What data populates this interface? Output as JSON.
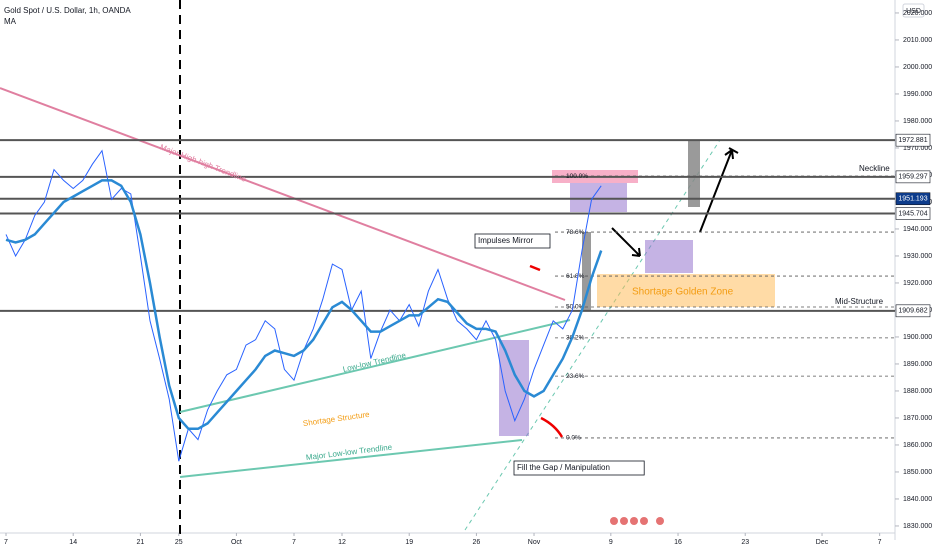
{
  "chart_data": {
    "type": "line",
    "title": "Gold Spot / U.S. Dollar, 1h, OANDA",
    "currency": "USD",
    "x": [
      0,
      1,
      2,
      3,
      4,
      5,
      6,
      7,
      8,
      9,
      10,
      11,
      12,
      13,
      14,
      15,
      16,
      17,
      18,
      19,
      20,
      21,
      22,
      23,
      24,
      25,
      26,
      27,
      28,
      29,
      30,
      31,
      32,
      33,
      34,
      35,
      36,
      37,
      38,
      39,
      40,
      41,
      42,
      43,
      44,
      45,
      46,
      47,
      48,
      49,
      50,
      51,
      52,
      53,
      54,
      55,
      56,
      57,
      58,
      59,
      60,
      61,
      62
    ],
    "price": {
      "color": "#2962ff",
      "values": [
        1938,
        1930,
        1936,
        1945,
        1950,
        1962,
        1958,
        1955,
        1958,
        1964,
        1969,
        1951,
        1955,
        1953,
        1930,
        1906,
        1892,
        1877,
        1854,
        1866,
        1862,
        1873,
        1880,
        1886,
        1888,
        1897,
        1899,
        1906,
        1903,
        1888,
        1884,
        1895,
        1903,
        1914,
        1927,
        1925,
        1910,
        1917,
        1892,
        1902,
        1910,
        1906,
        1912,
        1904,
        1917,
        1925,
        1914,
        1906,
        1903,
        1899,
        1906,
        1899,
        1880,
        1869,
        1877,
        1888,
        1897,
        1906,
        1903,
        1910,
        1932,
        1951,
        1956
      ]
    },
    "series": [
      {
        "name": "MA",
        "color": "#2a8ad4",
        "values": [
          1936,
          1935,
          1936,
          1938,
          1942,
          1946,
          1950,
          1952,
          1954,
          1956,
          1958,
          1958,
          1956,
          1950,
          1938,
          1920,
          1900,
          1882,
          1870,
          1866,
          1866,
          1868,
          1872,
          1876,
          1880,
          1884,
          1888,
          1893,
          1895,
          1894,
          1893,
          1895,
          1899,
          1905,
          1911,
          1913,
          1910,
          1906,
          1902,
          1902,
          1904,
          1906,
          1908,
          1908,
          1911,
          1914,
          1913,
          1909,
          1905,
          1903,
          1903,
          1902,
          1895,
          1886,
          1880,
          1878,
          1880,
          1886,
          1892,
          1900,
          1910,
          1922,
          1932
        ]
      }
    ],
    "xlim": [
      -0.625,
      92.6
    ],
    "xticks": [
      {
        "value": 0,
        "label": "7"
      },
      {
        "value": 7,
        "label": "14"
      },
      {
        "value": 14,
        "label": "21"
      },
      {
        "value": 18,
        "label": "25"
      },
      {
        "value": 24,
        "label": "Oct"
      },
      {
        "value": 30,
        "label": "7"
      },
      {
        "value": 35,
        "label": "12"
      },
      {
        "value": 42,
        "label": "19"
      },
      {
        "value": 49,
        "label": "26"
      },
      {
        "value": 55,
        "label": "Nov"
      },
      {
        "value": 63,
        "label": "9"
      },
      {
        "value": 70,
        "label": "16"
      },
      {
        "value": 77,
        "label": "23"
      },
      {
        "value": 85,
        "label": "Dec"
      },
      {
        "value": 91,
        "label": "7"
      }
    ],
    "ylim": [
      1824.8,
      2024.8
    ],
    "yticks": [
      {
        "value": 1830,
        "label": "1830.000"
      },
      {
        "value": 1840,
        "label": "1840.000"
      },
      {
        "value": 1850,
        "label": "1850.000"
      },
      {
        "value": 1860,
        "label": "1860.000"
      },
      {
        "value": 1870,
        "label": "1870.000"
      },
      {
        "value": 1880,
        "label": "1880.000"
      },
      {
        "value": 1890,
        "label": "1890.000"
      },
      {
        "value": 1900,
        "label": "1900.000"
      },
      {
        "value": 1910,
        "label": "1910.000"
      },
      {
        "value": 1920,
        "label": "1920.000"
      },
      {
        "value": 1930,
        "label": "1930.000"
      },
      {
        "value": 1940,
        "label": "1940.000"
      },
      {
        "value": 1950,
        "label": "1950.000"
      },
      {
        "value": 1960,
        "label": "1960.000"
      },
      {
        "value": 1970,
        "label": "1970.000"
      },
      {
        "value": 1980,
        "label": "1980.000"
      },
      {
        "value": 1990,
        "label": "1990.000"
      },
      {
        "value": 2000,
        "label": "2000.000"
      },
      {
        "value": 2010,
        "label": "2010.000"
      },
      {
        "value": 2020,
        "label": "2020.000"
      }
    ],
    "levels": [
      {
        "value": 1972.881,
        "bg": "#ffffff",
        "fg": "#131722"
      },
      {
        "value": 1959.297,
        "bg": "#ffffff",
        "fg": "#131722"
      },
      {
        "value": 1951.193,
        "bg": "#0d3c8c",
        "fg": "#ffffff"
      },
      {
        "value": 1945.704,
        "bg": "#ffffff",
        "fg": "#131722"
      },
      {
        "value": 1909.682,
        "bg": "#ffffff",
        "fg": "#131722"
      }
    ],
    "fib": {
      "low": 1862.6,
      "high": 1959.6,
      "levels": [
        {
          "value": 100,
          "label": "100.0%"
        },
        {
          "value": 78.6,
          "label": "78.6%"
        },
        {
          "value": 61.8,
          "label": "61.8%"
        },
        {
          "value": 50,
          "label": "50.0%"
        },
        {
          "value": 38.2,
          "label": "38.2%"
        },
        {
          "value": 23.6,
          "label": "23.6%"
        },
        {
          "value": 0,
          "label": "0.0%"
        }
      ]
    },
    "annotations": [
      "Major High-high Trendline",
      "Low-low Trendline",
      "Shortage Structure",
      "Major Low-low Trendline",
      "Impulses Mirror",
      "Fill the Gap / Manipulation",
      "Shortage Golden Zone",
      "Neckline",
      "Mid-Structure"
    ]
  }
}
